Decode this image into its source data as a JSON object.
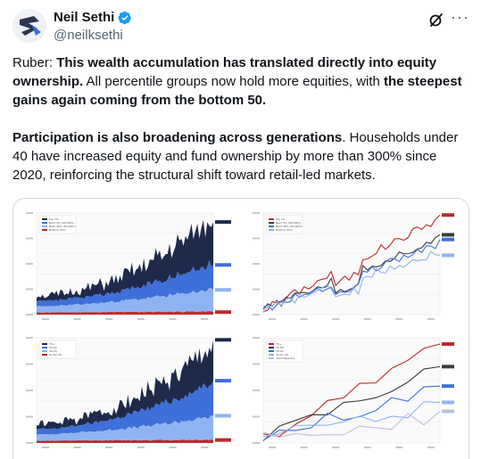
{
  "header": {
    "display_name": "Neil Sethi",
    "handle": "@neilksethi",
    "verified_icon": "verified-badge-icon",
    "grok_icon": "grok-icon",
    "more_icon": "more-options-icon",
    "more_label": "···"
  },
  "tweet": {
    "p1": [
      {
        "t": "Ruber: ",
        "b": false
      },
      {
        "t": "This wealth accumulation has translated directly into equity ownership.",
        "b": true
      },
      {
        "t": " All percentile groups now hold more equities, with ",
        "b": false
      },
      {
        "t": "the steepest gains again coming from the bottom 50.",
        "b": true
      }
    ],
    "p2": [
      {
        "t": "Participation is also broadening across generations",
        "b": true
      },
      {
        "t": ". Households under 40 have increased equity and fund ownership by more than 300% since 2020, reinforcing the structural shift toward retail-led markets.",
        "b": false
      }
    ]
  },
  "colors": {
    "navy": "#1f2a4a",
    "mid_blue": "#3f6fd8",
    "light_blue": "#8fb3f2",
    "red": "#c0282d",
    "dark_gray": "#3b3b3b"
  },
  "charts": [
    {
      "type": "area",
      "legend": [
        "Top 1%",
        "Next 9% (90-99th)",
        "Next 40% (50-90th)",
        "Bottom 50%"
      ]
    },
    {
      "type": "line",
      "legend": [
        "Top 1%",
        "Next 9% (90-99th)",
        "Next 40% (50-90th)",
        "Bottom 50%"
      ]
    },
    {
      "type": "area",
      "legend": [
        "70+",
        "55-69",
        "40-54",
        "Under 40"
      ]
    },
    {
      "type": "line",
      "legend": [
        "70+",
        "55-69",
        "40-54",
        "Under 40",
        "2020 Baseline"
      ]
    }
  ]
}
